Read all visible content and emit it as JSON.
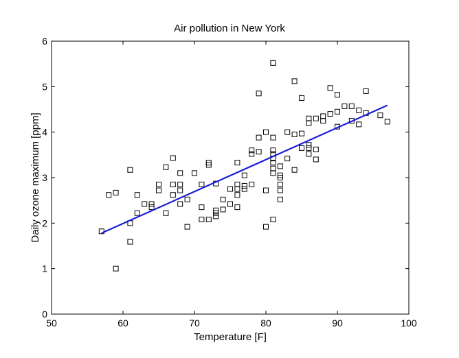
{
  "chart_data": {
    "type": "scatter",
    "title": "Air pollution in New York",
    "xlabel": "Temperature [F]",
    "ylabel": "Daily ozone maximum [ppm]",
    "xlim": [
      50,
      100
    ],
    "ylim": [
      0,
      6
    ],
    "xticks": [
      50,
      60,
      70,
      80,
      90,
      100
    ],
    "yticks": [
      0,
      1,
      2,
      3,
      4,
      5,
      6
    ],
    "grid": false,
    "legend": "none",
    "series": [
      {
        "type": "scatter",
        "marker": "square",
        "color": "#000000",
        "points": [
          [
            57,
            1.82
          ],
          [
            58,
            2.62
          ],
          [
            59,
            2.67
          ],
          [
            59,
            1.0
          ],
          [
            61,
            3.17
          ],
          [
            61,
            2.0
          ],
          [
            61,
            1.59
          ],
          [
            62,
            2.62
          ],
          [
            62,
            2.22
          ],
          [
            63,
            2.42
          ],
          [
            64,
            2.42
          ],
          [
            64,
            2.35
          ],
          [
            65,
            2.85
          ],
          [
            65,
            2.72
          ],
          [
            66,
            3.23
          ],
          [
            66,
            2.22
          ],
          [
            67,
            3.43
          ],
          [
            67,
            2.85
          ],
          [
            67,
            2.62
          ],
          [
            68,
            3.1
          ],
          [
            68,
            2.85
          ],
          [
            68,
            2.72
          ],
          [
            68,
            2.42
          ],
          [
            69,
            2.52
          ],
          [
            69,
            1.92
          ],
          [
            70,
            3.1
          ],
          [
            71,
            2.85
          ],
          [
            71,
            2.35
          ],
          [
            71,
            2.08
          ],
          [
            72,
            3.33
          ],
          [
            72,
            3.28
          ],
          [
            72,
            2.08
          ],
          [
            73,
            2.87
          ],
          [
            73,
            2.28
          ],
          [
            73,
            2.22
          ],
          [
            73,
            2.15
          ],
          [
            74,
            2.52
          ],
          [
            74,
            2.3
          ],
          [
            75,
            2.75
          ],
          [
            75,
            2.42
          ],
          [
            76,
            3.33
          ],
          [
            76,
            2.85
          ],
          [
            76,
            2.75
          ],
          [
            76,
            2.62
          ],
          [
            76,
            2.35
          ],
          [
            77,
            3.05
          ],
          [
            77,
            2.82
          ],
          [
            77,
            2.75
          ],
          [
            78,
            3.6
          ],
          [
            78,
            3.52
          ],
          [
            78,
            2.85
          ],
          [
            79,
            4.85
          ],
          [
            79,
            3.88
          ],
          [
            79,
            3.57
          ],
          [
            80,
            4.0
          ],
          [
            80,
            2.72
          ],
          [
            80,
            1.92
          ],
          [
            81,
            5.52
          ],
          [
            81,
            3.88
          ],
          [
            81,
            3.6
          ],
          [
            81,
            3.52
          ],
          [
            81,
            3.42
          ],
          [
            81,
            3.33
          ],
          [
            81,
            3.2
          ],
          [
            81,
            3.1
          ],
          [
            81,
            2.08
          ],
          [
            82,
            3.25
          ],
          [
            82,
            3.05
          ],
          [
            82,
            3.0
          ],
          [
            82,
            2.85
          ],
          [
            82,
            2.72
          ],
          [
            82,
            2.52
          ],
          [
            83,
            4.0
          ],
          [
            83,
            3.42
          ],
          [
            84,
            5.12
          ],
          [
            84,
            3.95
          ],
          [
            84,
            3.17
          ],
          [
            85,
            4.75
          ],
          [
            85,
            3.97
          ],
          [
            85,
            3.65
          ],
          [
            86,
            4.3
          ],
          [
            86,
            4.2
          ],
          [
            86,
            3.72
          ],
          [
            86,
            3.65
          ],
          [
            86,
            3.52
          ],
          [
            87,
            4.3
          ],
          [
            87,
            3.62
          ],
          [
            87,
            3.4
          ],
          [
            88,
            4.35
          ],
          [
            88,
            4.25
          ],
          [
            89,
            4.97
          ],
          [
            89,
            4.4
          ],
          [
            90,
            4.82
          ],
          [
            90,
            4.45
          ],
          [
            90,
            4.12
          ],
          [
            91,
            4.57
          ],
          [
            92,
            4.57
          ],
          [
            92,
            4.25
          ],
          [
            93,
            4.48
          ],
          [
            93,
            4.17
          ],
          [
            94,
            4.9
          ],
          [
            94,
            4.42
          ],
          [
            96,
            4.37
          ],
          [
            97,
            4.23
          ]
        ]
      },
      {
        "type": "line",
        "style": "fit",
        "color": "#1a1adb",
        "points": [
          [
            57,
            1.78
          ],
          [
            97,
            4.59
          ]
        ]
      }
    ]
  }
}
